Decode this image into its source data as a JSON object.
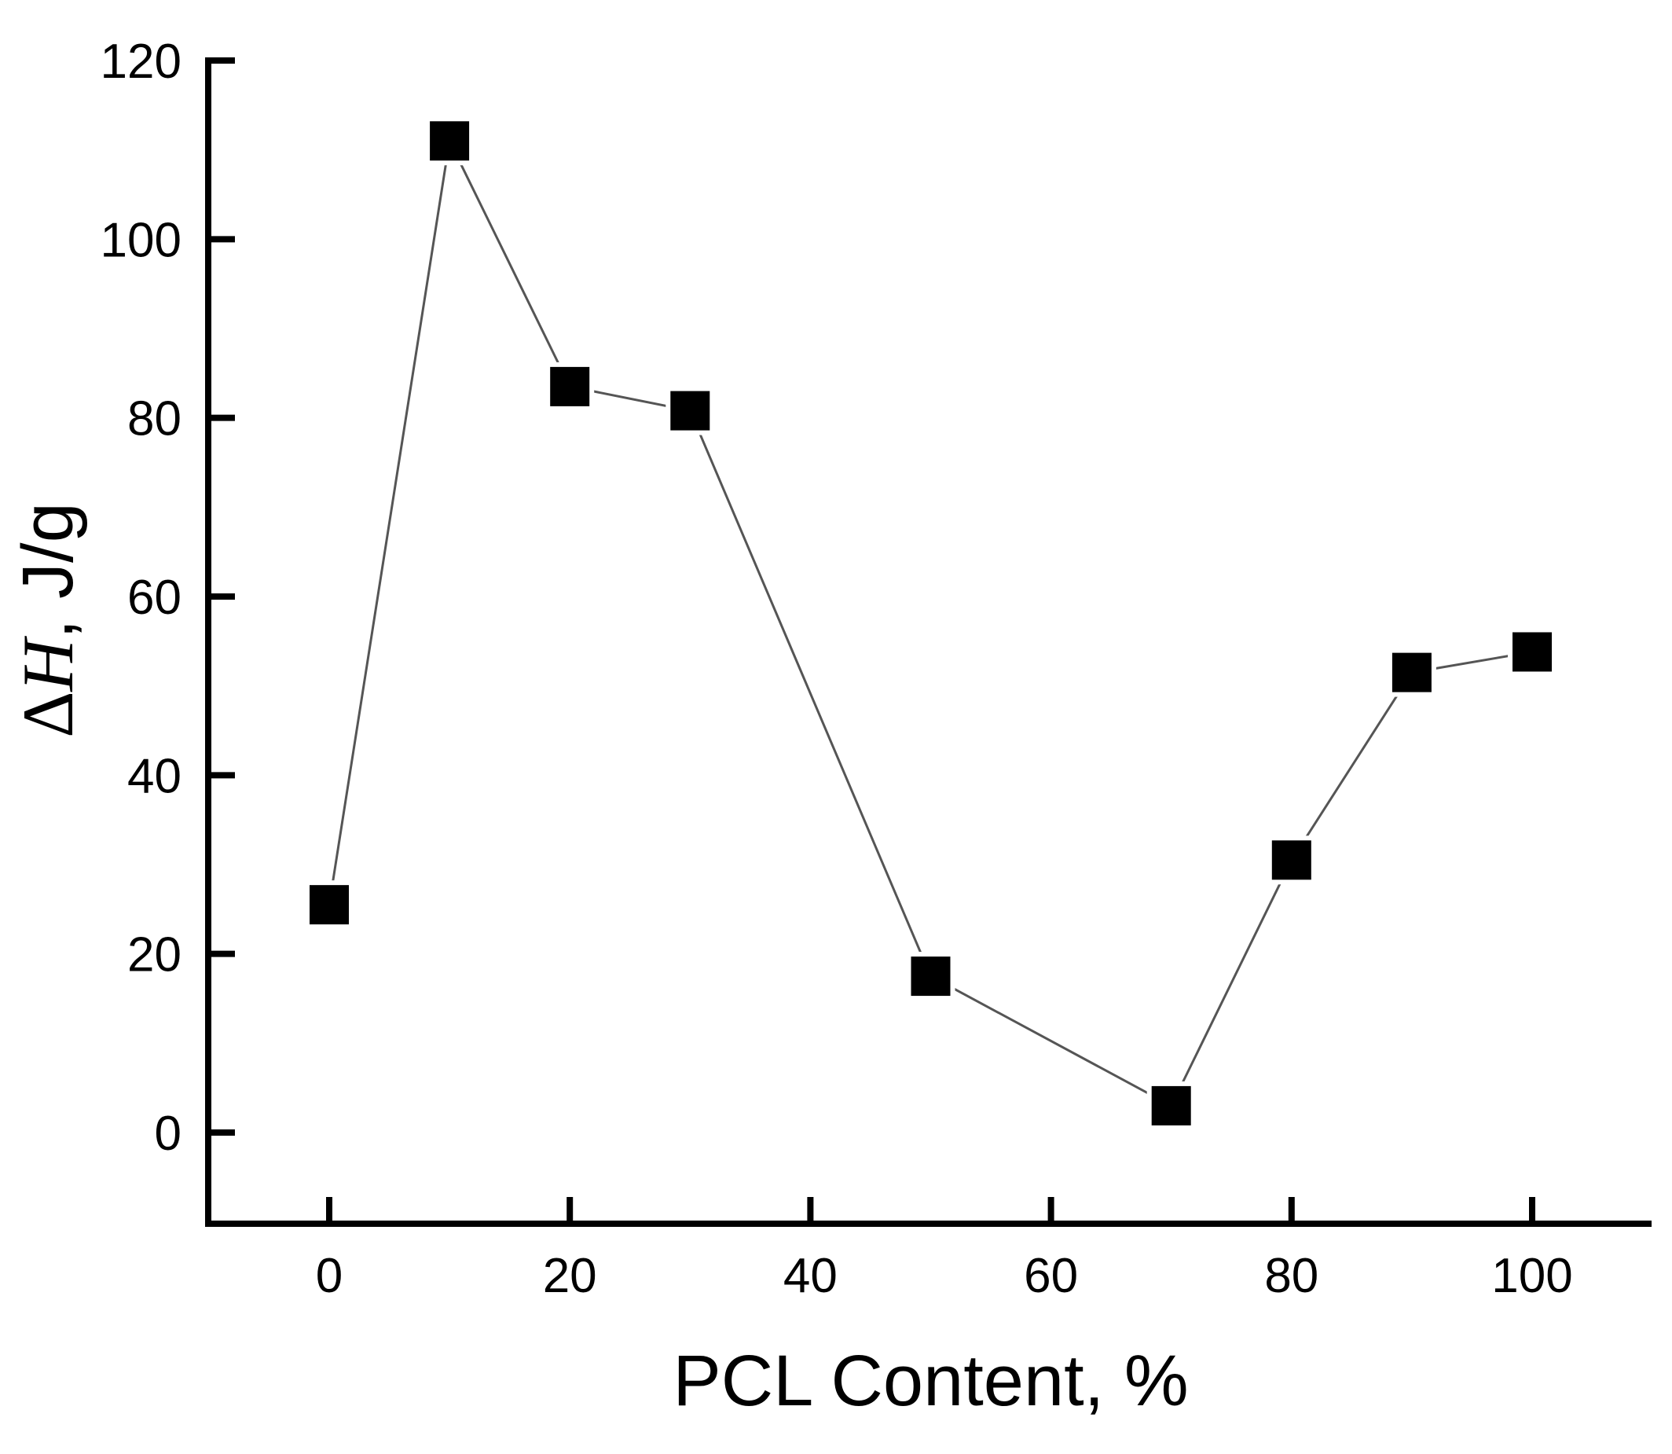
{
  "chart_data": {
    "type": "line",
    "title": "",
    "xlabel": "PCL Content, %",
    "ylabel_parts": {
      "symbol": "Δ",
      "variable": "H",
      "unit": ", J/g"
    },
    "ylabel": "ΔH, J/g",
    "xlim": [
      -10,
      110
    ],
    "ylim": [
      -10,
      120
    ],
    "x_ticks": [
      0,
      20,
      40,
      60,
      80,
      100
    ],
    "y_ticks": [
      0,
      20,
      40,
      60,
      80,
      100,
      120
    ],
    "x_tick_labels": [
      "0",
      "20",
      "40",
      "60",
      "80",
      "100"
    ],
    "y_tick_labels": [
      "0",
      "20",
      "40",
      "60",
      "80",
      "100",
      "120"
    ],
    "grid": false,
    "legend": false,
    "marker": "square",
    "marker_color": "#000000",
    "line_color": "#555555",
    "series": [
      {
        "x": [
          0,
          10,
          20,
          30,
          50,
          70,
          80,
          90,
          100
        ],
        "y": [
          25.5,
          111,
          83.5,
          80.8,
          17.5,
          3,
          30.5,
          51.5,
          53.8
        ]
      }
    ]
  }
}
